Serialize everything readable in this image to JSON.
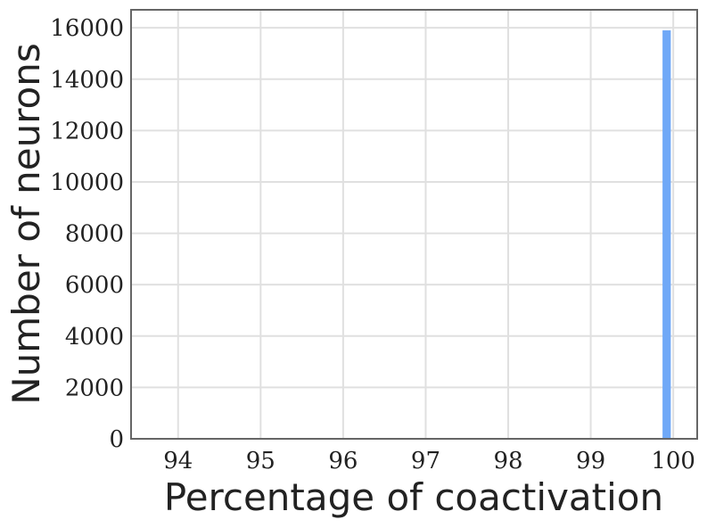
{
  "chart_data": {
    "type": "histogram",
    "xlabel": "Percentage of coactivation",
    "ylabel": "Number of neurons",
    "bins": [
      99.87,
      99.97
    ],
    "counts": [
      15900
    ],
    "color": "#6fa8f7",
    "xlim": [
      93.43,
      100.29
    ],
    "xticks": [
      94,
      95,
      96,
      97,
      98,
      99,
      100
    ],
    "ylim": [
      0,
      16700
    ],
    "yticks": [
      0,
      2000,
      4000,
      6000,
      8000,
      10000,
      12000,
      14000,
      16000
    ],
    "grid": true
  }
}
